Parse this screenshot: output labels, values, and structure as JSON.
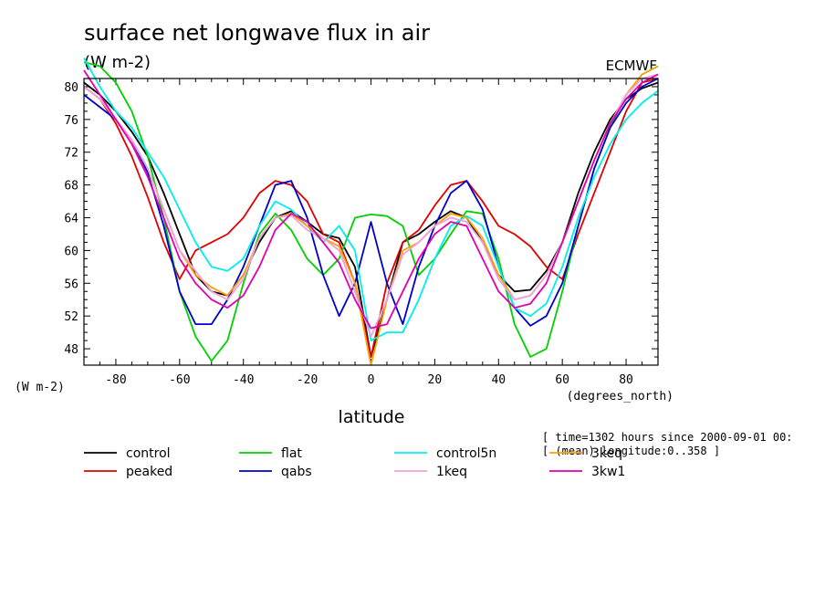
{
  "chart_data": {
    "type": "line",
    "title": "surface net longwave flux in air",
    "units_label": "(W m-2)",
    "source_label": "ECMWF",
    "ylabel": "(W m-2)",
    "xlabel": "latitude",
    "x_units_label": "(degrees_north)",
    "xlim": [
      -90,
      90
    ],
    "ylim": [
      46,
      81
    ],
    "xticks": [
      -80,
      -60,
      -40,
      -20,
      0,
      20,
      40,
      60,
      80
    ],
    "yticks": [
      48,
      52,
      56,
      60,
      64,
      68,
      72,
      76,
      80
    ],
    "info_lines": [
      "[ time=1302 hours since 2000-09-01 00:",
      "[ (mean) longitude:0..358 ]"
    ],
    "series": [
      {
        "name": "control",
        "color": "#000000",
        "x": [
          -90,
          -85,
          -80,
          -75,
          -70,
          -65,
          -60,
          -55,
          -50,
          -45,
          -40,
          -35,
          -30,
          -25,
          -20,
          -15,
          -10,
          -5,
          0,
          5,
          10,
          15,
          20,
          25,
          30,
          35,
          40,
          45,
          50,
          55,
          60,
          65,
          70,
          75,
          80,
          85,
          90
        ],
        "y": [
          80.5,
          79,
          77,
          74.5,
          71.5,
          67,
          62,
          57,
          55,
          54.5,
          57,
          61,
          64,
          64.8,
          63.5,
          62,
          61.5,
          58,
          47,
          54,
          61,
          62,
          63.5,
          64.8,
          64,
          61,
          57,
          55,
          55.2,
          57.5,
          61,
          67,
          72,
          76,
          78.5,
          79.8,
          80.5
        ]
      },
      {
        "name": "peaked",
        "color": "#e00000",
        "x": [
          -90,
          -85,
          -80,
          -75,
          -70,
          -65,
          -60,
          -55,
          -50,
          -45,
          -40,
          -35,
          -30,
          -25,
          -20,
          -15,
          -10,
          -5,
          0,
          5,
          10,
          15,
          20,
          25,
          30,
          35,
          40,
          45,
          50,
          55,
          60,
          65,
          70,
          75,
          80,
          85,
          90
        ],
        "y": [
          80,
          78.5,
          75.5,
          71.5,
          66.5,
          61,
          56.5,
          60,
          61,
          62,
          64,
          67,
          68.5,
          68,
          66,
          62,
          61,
          56,
          47,
          56,
          61,
          62.5,
          65.5,
          68,
          68.5,
          66,
          63,
          62,
          60.5,
          58,
          56.5,
          62,
          67,
          72,
          77,
          80.5,
          81
        ]
      },
      {
        "name": "flat",
        "color": "#00d000",
        "x": [
          -90,
          -85,
          -80,
          -75,
          -70,
          -65,
          -60,
          -55,
          -50,
          -45,
          -40,
          -35,
          -30,
          -25,
          -20,
          -15,
          -10,
          -5,
          0,
          5,
          10,
          15,
          20,
          25,
          30,
          35,
          40,
          45,
          50,
          55,
          60,
          65,
          70,
          75,
          80,
          85,
          90
        ],
        "y": [
          83,
          82.5,
          80.5,
          77,
          71.5,
          64,
          55,
          49.5,
          46.5,
          49,
          56,
          62,
          64.5,
          62.5,
          59,
          57,
          59,
          64,
          64.4,
          64.2,
          63,
          57,
          59,
          62,
          64.8,
          64.5,
          59,
          51,
          47,
          48,
          55,
          63,
          70,
          75,
          79,
          81.5,
          82.5
        ]
      },
      {
        "name": "qabs",
        "color": "#0000cc",
        "x": [
          -90,
          -85,
          -80,
          -75,
          -70,
          -65,
          -60,
          -55,
          -50,
          -45,
          -40,
          -35,
          -30,
          -25,
          -20,
          -15,
          -10,
          -5,
          0,
          5,
          10,
          15,
          20,
          25,
          30,
          35,
          40,
          45,
          50,
          55,
          60,
          65,
          70,
          75,
          80,
          85,
          90
        ],
        "y": [
          79,
          77.5,
          76,
          73.5,
          69.5,
          63,
          55,
          51,
          51,
          54,
          58,
          63,
          68,
          68.5,
          64,
          57,
          52,
          56,
          63.5,
          56,
          51,
          58,
          63,
          67,
          68.5,
          65,
          58,
          53,
          50.8,
          52,
          56,
          63,
          70,
          75,
          78,
          80,
          81
        ]
      },
      {
        "name": "control5n",
        "color": "#00eeee",
        "x": [
          -90,
          -85,
          -80,
          -75,
          -70,
          -65,
          -60,
          -55,
          -50,
          -45,
          -40,
          -35,
          -30,
          -25,
          -20,
          -15,
          -10,
          -5,
          0,
          5,
          10,
          15,
          20,
          25,
          30,
          35,
          40,
          45,
          50,
          55,
          60,
          65,
          70,
          75,
          80,
          85,
          90
        ],
        "y": [
          83.5,
          80,
          77,
          75,
          72,
          69,
          65,
          61,
          58,
          57.5,
          59,
          63,
          66,
          65,
          63,
          61,
          63,
          60,
          49,
          50,
          50,
          54,
          59,
          63,
          64.2,
          63,
          58,
          53,
          52,
          53.5,
          58,
          64,
          69,
          73,
          76,
          78,
          79.5
        ]
      },
      {
        "name": "3keq",
        "color": "#ffa000",
        "x": [
          -90,
          -85,
          -80,
          -75,
          -70,
          -65,
          -60,
          -55,
          -50,
          -45,
          -40,
          -35,
          -30,
          -25,
          -20,
          -15,
          -10,
          -5,
          0,
          5,
          10,
          15,
          20,
          25,
          30,
          35,
          40,
          45,
          50,
          55,
          60,
          65,
          70,
          75,
          80,
          85,
          90
        ],
        "y": [
          80,
          78.5,
          76,
          73.5,
          70,
          65,
          60,
          57,
          55.5,
          54.5,
          57,
          61.5,
          64,
          64.5,
          63,
          61.5,
          60.5,
          56,
          46,
          54,
          60,
          61,
          63,
          64.5,
          64,
          61.5,
          57,
          54,
          54.5,
          57,
          61,
          66,
          71,
          75.5,
          79,
          81.5,
          82.5
        ]
      },
      {
        "name": "1keq",
        "color": "#f0a0e0",
        "x": [
          -90,
          -85,
          -80,
          -75,
          -70,
          -65,
          -60,
          -55,
          -50,
          -45,
          -40,
          -35,
          -30,
          -25,
          -20,
          -15,
          -10,
          -5,
          0,
          5,
          10,
          15,
          20,
          25,
          30,
          35,
          40,
          45,
          50,
          55,
          60,
          65,
          70,
          75,
          80,
          85,
          90
        ],
        "y": [
          80,
          78.5,
          76,
          73.5,
          70,
          65,
          60,
          57.5,
          55,
          54,
          56.5,
          61.5,
          64,
          64.3,
          62.5,
          61.5,
          60,
          55,
          49.5,
          54,
          59.5,
          61,
          63,
          64,
          63.5,
          61,
          56.5,
          54,
          54.5,
          57,
          61,
          66,
          71,
          75.5,
          79,
          81,
          81.5
        ]
      },
      {
        "name": "3kw1",
        "color": "#e000b0",
        "x": [
          -90,
          -85,
          -80,
          -75,
          -70,
          -65,
          -60,
          -55,
          -50,
          -45,
          -40,
          -35,
          -30,
          -25,
          -20,
          -15,
          -10,
          -5,
          0,
          5,
          10,
          15,
          20,
          25,
          30,
          35,
          40,
          45,
          50,
          55,
          60,
          65,
          70,
          75,
          80,
          85,
          90
        ],
        "y": [
          82,
          79,
          76,
          73,
          69,
          64,
          59,
          56,
          54,
          53,
          54.5,
          58,
          62.5,
          64.5,
          63.5,
          61,
          58.5,
          54,
          50.5,
          51,
          55,
          59,
          62,
          63.5,
          63,
          59,
          55,
          53,
          53.5,
          56,
          61,
          66,
          71,
          75.5,
          78.5,
          80.5,
          81.5
        ]
      }
    ],
    "legend": [
      {
        "label": "control",
        "color": "#000000"
      },
      {
        "label": "flat",
        "color": "#00d000"
      },
      {
        "label": "control5n",
        "color": "#00eeee"
      },
      {
        "label": "3keq",
        "color": "#ffa000"
      },
      {
        "label": "peaked",
        "color": "#e00000"
      },
      {
        "label": "qabs",
        "color": "#0000cc"
      },
      {
        "label": "1keq",
        "color": "#f0a0e0"
      },
      {
        "label": "3kw1",
        "color": "#e000b0"
      }
    ]
  }
}
